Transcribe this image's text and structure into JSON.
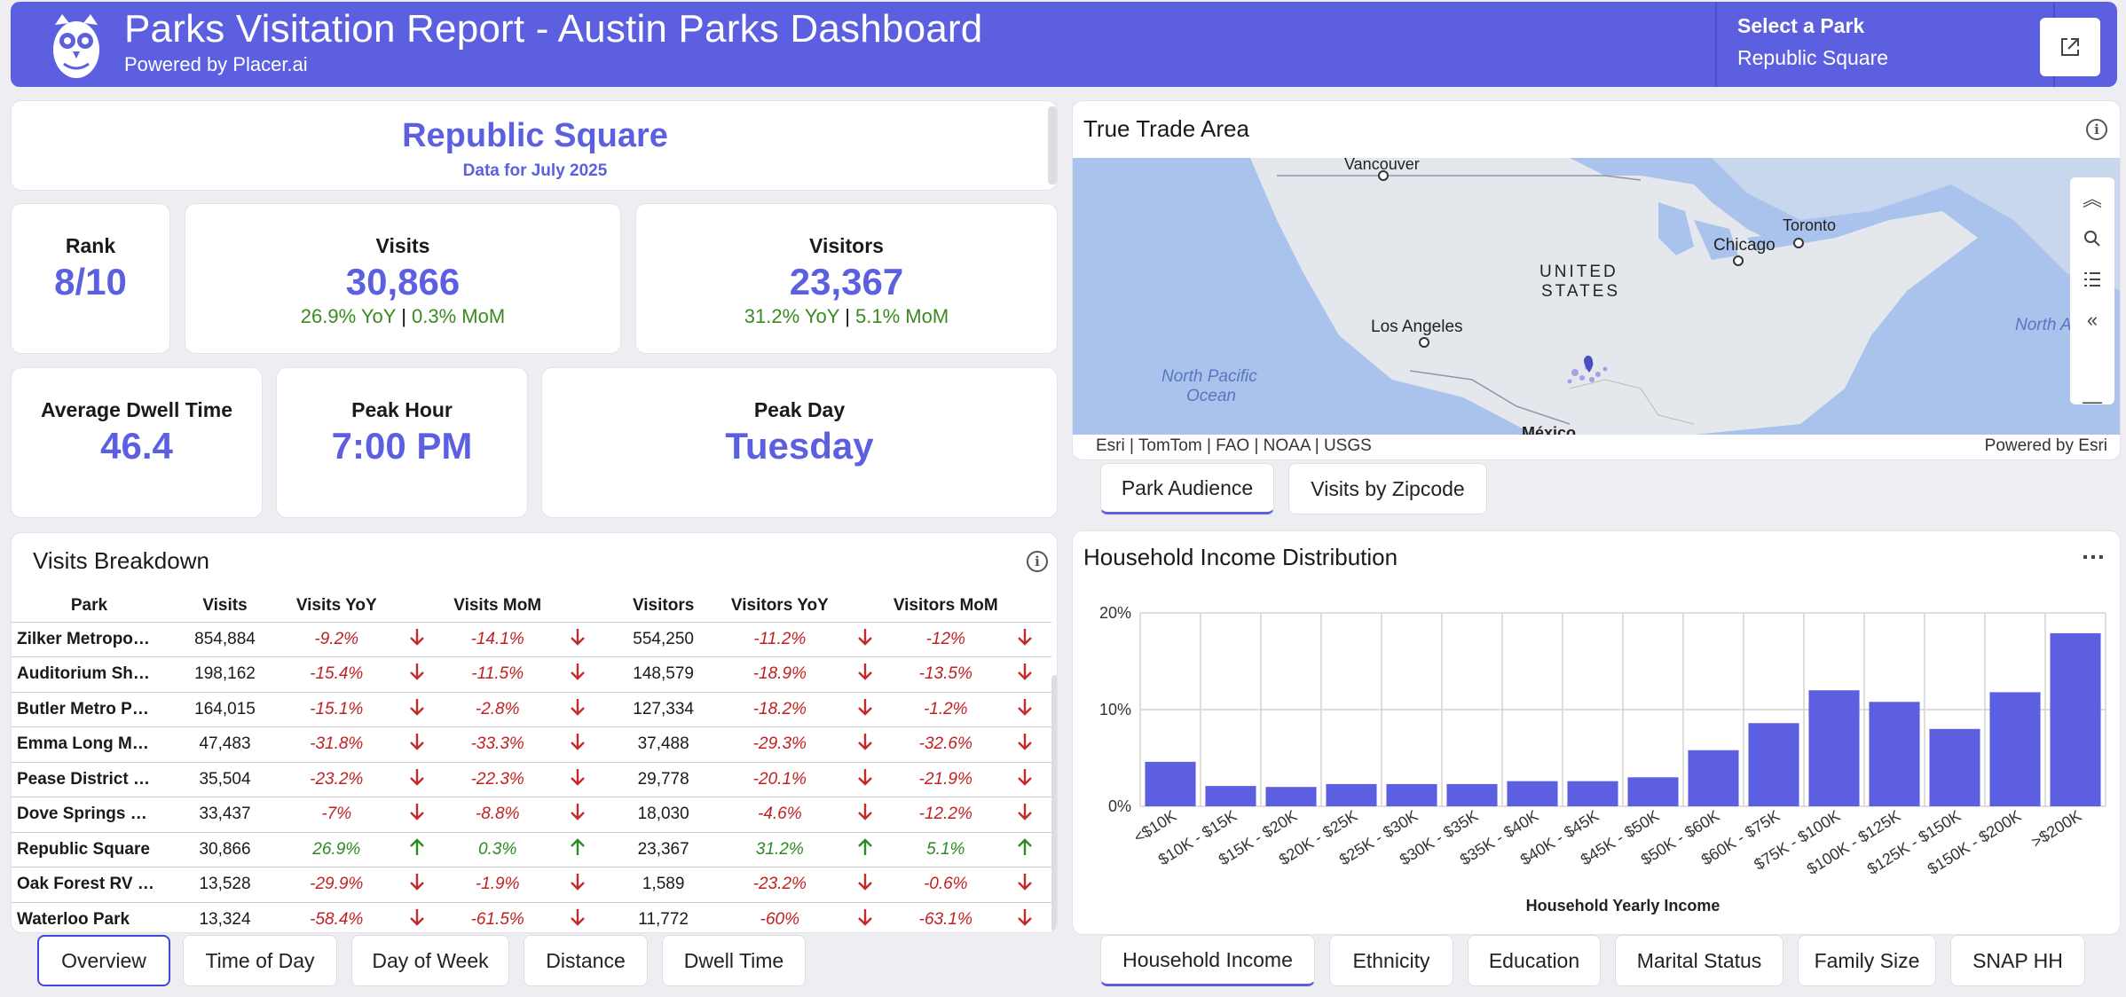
{
  "header": {
    "title": "Parks Visitation Report - Austin Parks Dashboard",
    "subtitle": "Powered by Placer.ai",
    "select_label": "Select a Park",
    "select_value": "Republic Square"
  },
  "park": {
    "name": "Republic Square",
    "data_period": "Data for July 2025"
  },
  "kpis": {
    "rank": {
      "label": "Rank",
      "value": "8/10"
    },
    "visits": {
      "label": "Visits",
      "value": "30,866",
      "yoy": "26.9% YoY",
      "mom": "0.3% MoM"
    },
    "visitors": {
      "label": "Visitors",
      "value": "23,367",
      "yoy": "31.2% YoY",
      "mom": "5.1% MoM"
    },
    "dwell": {
      "label": "Average Dwell Time",
      "value": "46.4"
    },
    "peak_hour": {
      "label": "Peak Hour",
      "value": "7:00 PM"
    },
    "peak_day": {
      "label": "Peak Day",
      "value": "Tuesday"
    }
  },
  "breakdown": {
    "title": "Visits Breakdown",
    "columns": [
      "Park",
      "Visits",
      "Visits YoY",
      "Visits MoM",
      "Visitors",
      "Visitors YoY",
      "Visitors MoM"
    ],
    "rows": [
      {
        "park": "Zilker Metropo…",
        "visits": "854,884",
        "visits_yoy": "-9.2%",
        "visits_yoy_dir": "down",
        "visits_mom": "-14.1%",
        "visits_mom_dir": "down",
        "visitors": "554,250",
        "visitors_yoy": "-11.2%",
        "visitors_yoy_dir": "down",
        "visitors_mom": "-12%",
        "visitors_mom_dir": "down"
      },
      {
        "park": "Auditorium Sh…",
        "visits": "198,162",
        "visits_yoy": "-15.4%",
        "visits_yoy_dir": "down",
        "visits_mom": "-11.5%",
        "visits_mom_dir": "down",
        "visitors": "148,579",
        "visitors_yoy": "-18.9%",
        "visitors_yoy_dir": "down",
        "visitors_mom": "-13.5%",
        "visitors_mom_dir": "down"
      },
      {
        "park": "Butler Metro P…",
        "visits": "164,015",
        "visits_yoy": "-15.1%",
        "visits_yoy_dir": "down",
        "visits_mom": "-2.8%",
        "visits_mom_dir": "down",
        "visitors": "127,334",
        "visitors_yoy": "-18.2%",
        "visitors_yoy_dir": "down",
        "visitors_mom": "-1.2%",
        "visitors_mom_dir": "down"
      },
      {
        "park": "Emma Long M…",
        "visits": "47,483",
        "visits_yoy": "-31.8%",
        "visits_yoy_dir": "down",
        "visits_mom": "-33.3%",
        "visits_mom_dir": "down",
        "visitors": "37,488",
        "visitors_yoy": "-29.3%",
        "visitors_yoy_dir": "down",
        "visitors_mom": "-32.6%",
        "visitors_mom_dir": "down"
      },
      {
        "park": "Pease District …",
        "visits": "35,504",
        "visits_yoy": "-23.2%",
        "visits_yoy_dir": "down",
        "visits_mom": "-22.3%",
        "visits_mom_dir": "down",
        "visitors": "29,778",
        "visitors_yoy": "-20.1%",
        "visitors_yoy_dir": "down",
        "visitors_mom": "-21.9%",
        "visitors_mom_dir": "down"
      },
      {
        "park": "Dove Springs …",
        "visits": "33,437",
        "visits_yoy": "-7%",
        "visits_yoy_dir": "down",
        "visits_mom": "-8.8%",
        "visits_mom_dir": "down",
        "visitors": "18,030",
        "visitors_yoy": "-4.6%",
        "visitors_yoy_dir": "down",
        "visitors_mom": "-12.2%",
        "visitors_mom_dir": "down"
      },
      {
        "park": "Republic Square",
        "visits": "30,866",
        "visits_yoy": "26.9%",
        "visits_yoy_dir": "up",
        "visits_mom": "0.3%",
        "visits_mom_dir": "up",
        "visitors": "23,367",
        "visitors_yoy": "31.2%",
        "visitors_yoy_dir": "up",
        "visitors_mom": "5.1%",
        "visitors_mom_dir": "up"
      },
      {
        "park": "Oak Forest RV …",
        "visits": "13,528",
        "visits_yoy": "-29.9%",
        "visits_yoy_dir": "down",
        "visits_mom": "-1.9%",
        "visits_mom_dir": "down",
        "visitors": "1,589",
        "visitors_yoy": "-23.2%",
        "visitors_yoy_dir": "down",
        "visitors_mom": "-0.6%",
        "visitors_mom_dir": "down"
      },
      {
        "park": "Waterloo Park",
        "visits": "13,324",
        "visits_yoy": "-58.4%",
        "visits_yoy_dir": "down",
        "visits_mom": "-61.5%",
        "visits_mom_dir": "down",
        "visitors": "11,772",
        "visitors_yoy": "-60%",
        "visitors_yoy_dir": "down",
        "visitors_mom": "-63.1%",
        "visitors_mom_dir": "down"
      }
    ]
  },
  "left_tabs": [
    "Overview",
    "Time of Day",
    "Day of Week",
    "Distance",
    "Dwell Time"
  ],
  "map": {
    "title": "True Trade Area",
    "labels": {
      "vancouver": "Vancouver",
      "toronto": "Toronto",
      "chicago": "Chicago",
      "us_line1": "UNITED",
      "us_line2": "STATES",
      "los_angeles": "Los Angeles",
      "pacific_line1": "North Pacific",
      "pacific_line2": "Ocean",
      "atlantic": "North Atlanti",
      "mexico": "México"
    },
    "attribution": "Esri | TomTom | FAO | NOAA | USGS",
    "powered": "Powered by Esri"
  },
  "map_tabs": [
    "Park Audience",
    "Visits by Zipcode"
  ],
  "income": {
    "title": "Household Income Distribution",
    "menu": "…"
  },
  "right_tabs": [
    "Household Income",
    "Ethnicity",
    "Education",
    "Marital Status",
    "Family Size",
    "SNAP HH"
  ],
  "colors": {
    "accent": "#5c60e0",
    "positive": "#2b8a20",
    "negative": "#c22020"
  },
  "chart_data": {
    "type": "bar",
    "title": "Household Income Distribution",
    "xlabel": "Household Yearly Income",
    "ylabel": "",
    "categories": [
      "<$10K",
      "$10K - $15K",
      "$15K - $20K",
      "$20K - $25K",
      "$25K - $30K",
      "$30K - $35K",
      "$35K - $40K",
      "$40K - $45K",
      "$45K - $50K",
      "$50K - $60K",
      "$60K - $75K",
      "$75K - $100K",
      "$100K - $125K",
      "$125K - $150K",
      "$150K - $200K",
      ">$200K"
    ],
    "values": [
      4.6,
      2.1,
      2.0,
      2.3,
      2.3,
      2.3,
      2.6,
      2.6,
      3.0,
      5.8,
      8.6,
      12.0,
      10.8,
      8.0,
      11.8,
      17.9
    ],
    "ylim": [
      0,
      20
    ],
    "yticks": [
      "0%",
      "10%",
      "20%"
    ],
    "grid": true,
    "legend": "none"
  }
}
